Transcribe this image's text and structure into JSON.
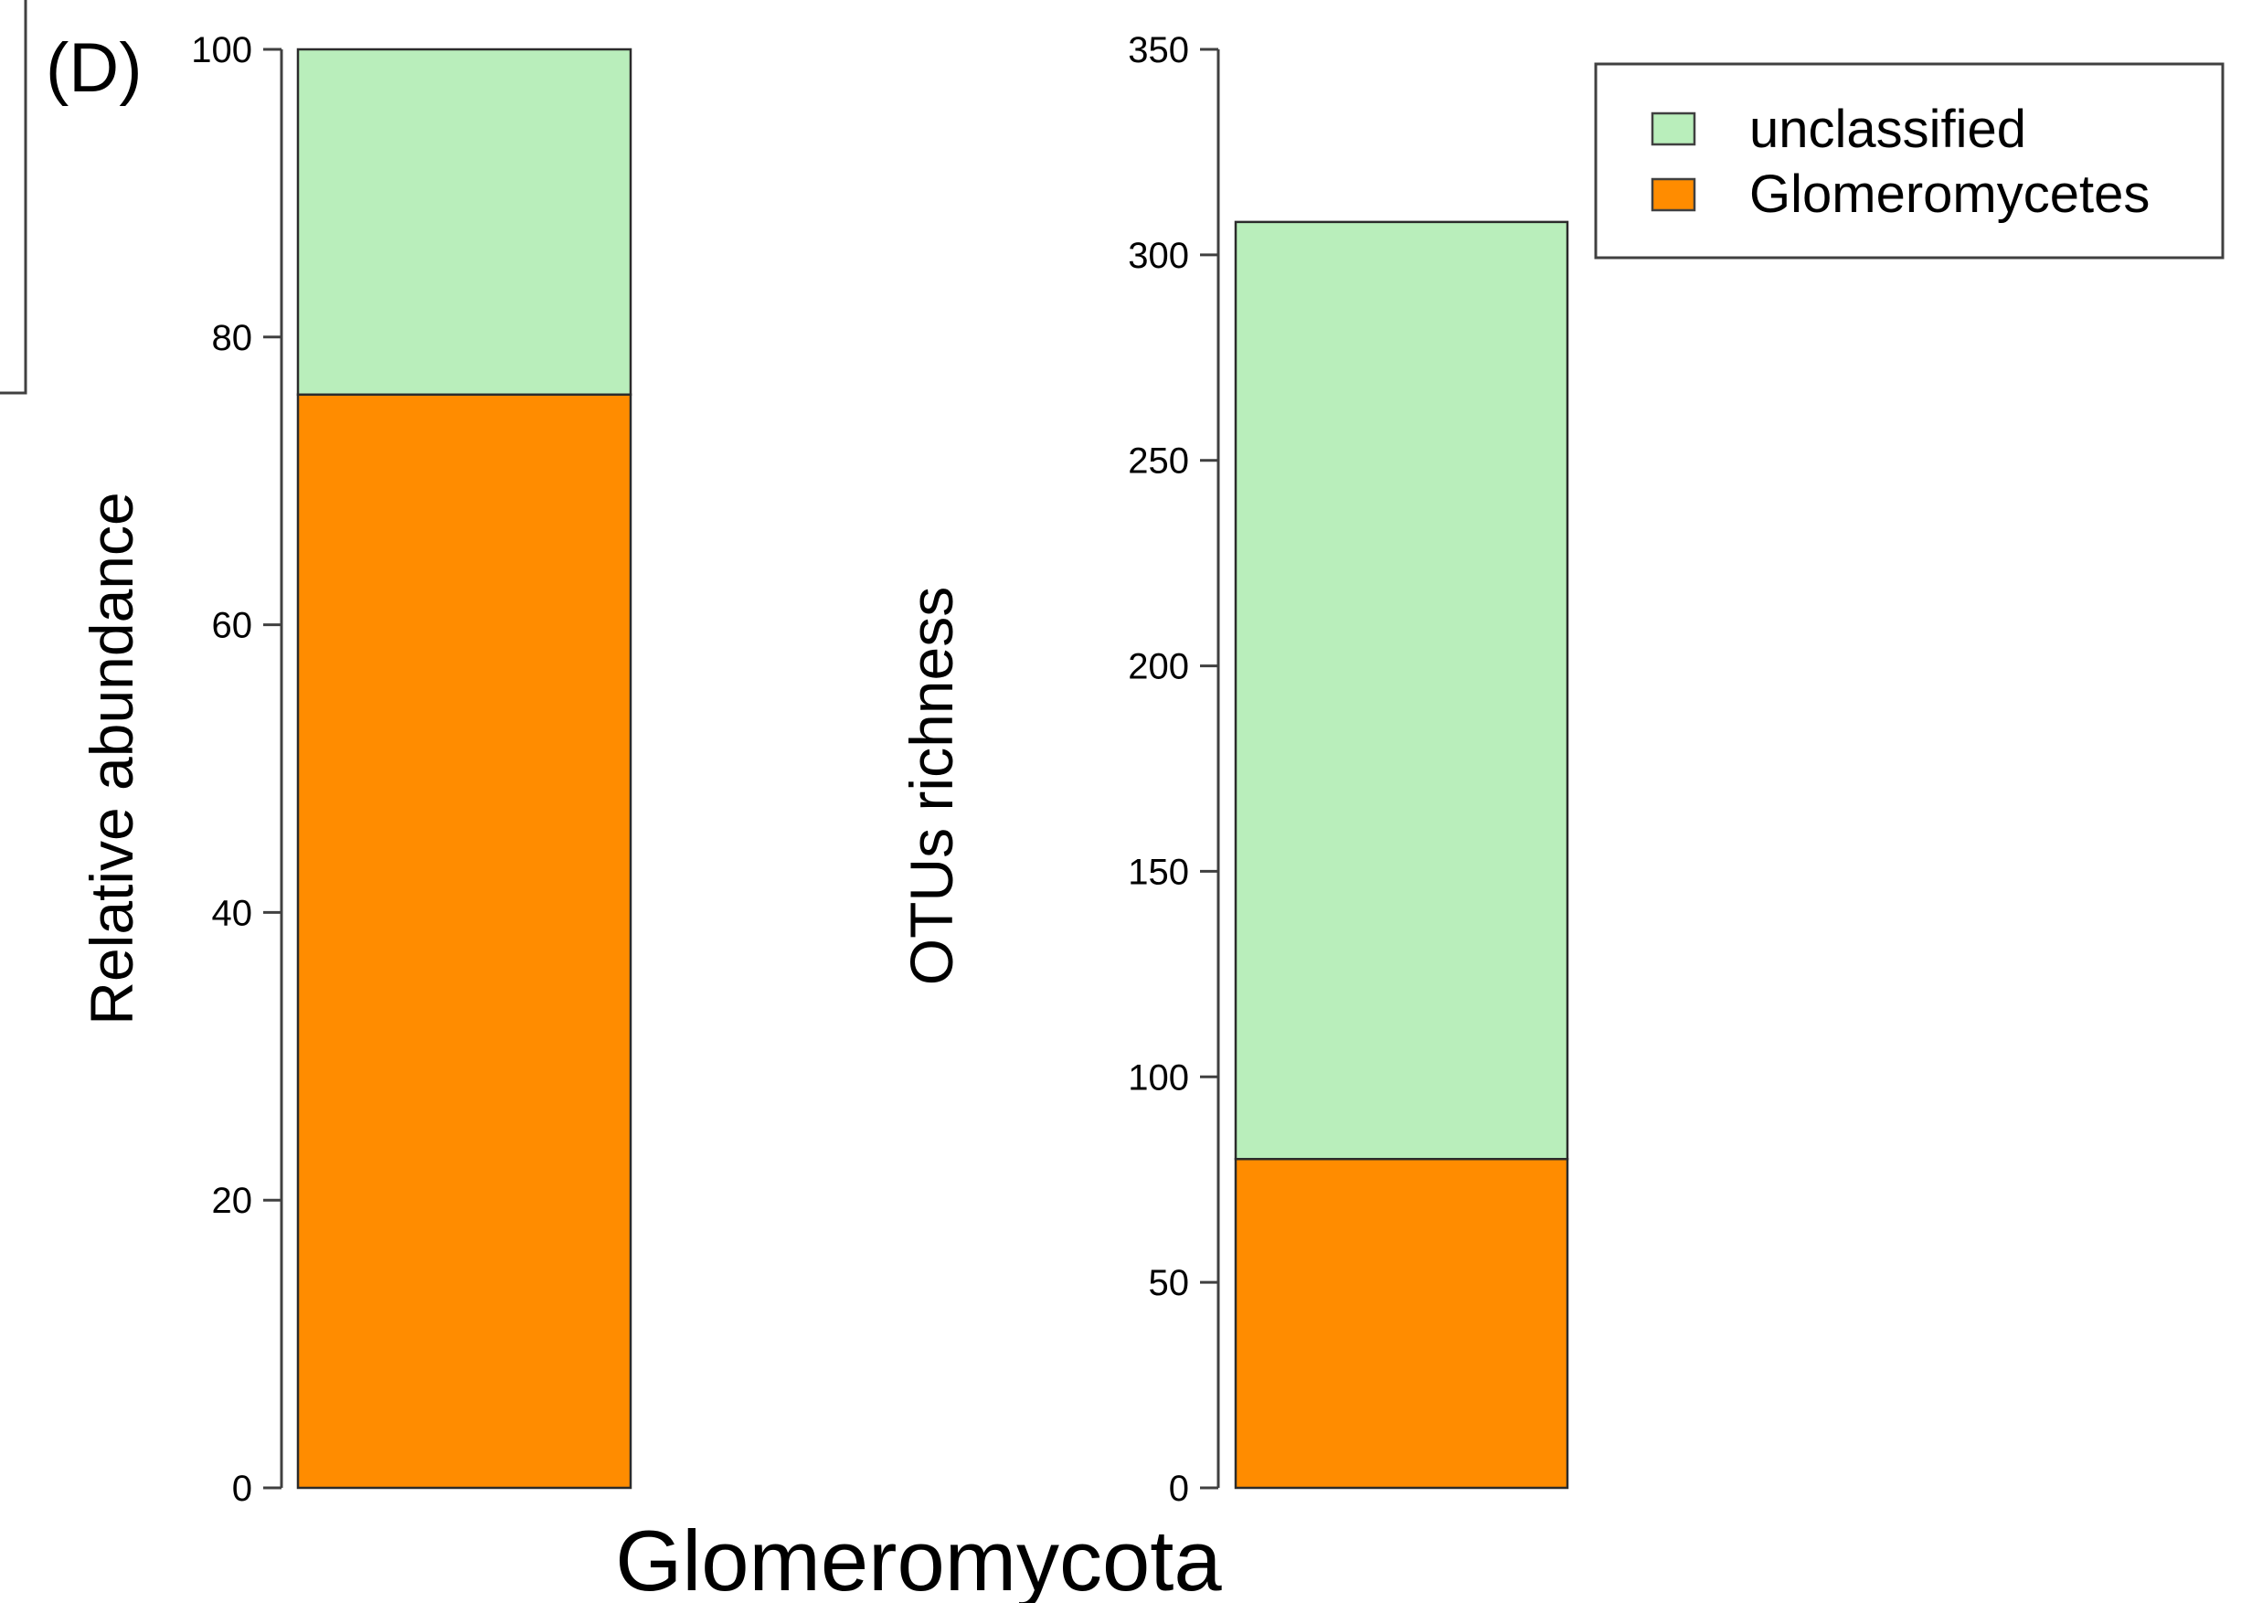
{
  "panel_label": "(D)",
  "category_label": "Glomeromycota",
  "colors": {
    "unclassified": "#b9eebb",
    "Glomeromycetes": "#ff8c00",
    "axis": "#404040",
    "bar_border": "#2b2b2b"
  },
  "legend": {
    "placement": "top-right",
    "entries": [
      {
        "name": "unclassified",
        "color": "#b9eebb"
      },
      {
        "name": "Glomeromycetes",
        "color": "#ff8c00"
      }
    ]
  },
  "chart_data": [
    {
      "type": "bar",
      "stacked": true,
      "categories": [
        "Glomeromycota"
      ],
      "ylabel": "Relative abundance",
      "ylim": [
        0,
        100
      ],
      "yticks": [
        0,
        20,
        40,
        60,
        80,
        100
      ],
      "series": [
        {
          "name": "Glomeromycetes",
          "values": [
            76
          ]
        },
        {
          "name": "unclassified",
          "values": [
            24
          ]
        }
      ],
      "grid": false
    },
    {
      "type": "bar",
      "stacked": true,
      "categories": [
        "Glomeromycota"
      ],
      "ylabel": "OTUs richness",
      "ylim": [
        0,
        350
      ],
      "yticks": [
        0,
        50,
        100,
        150,
        200,
        250,
        300,
        350
      ],
      "series": [
        {
          "name": "Glomeromycetes",
          "values": [
            80
          ]
        },
        {
          "name": "unclassified",
          "values": [
            228
          ]
        }
      ],
      "grid": false
    }
  ]
}
